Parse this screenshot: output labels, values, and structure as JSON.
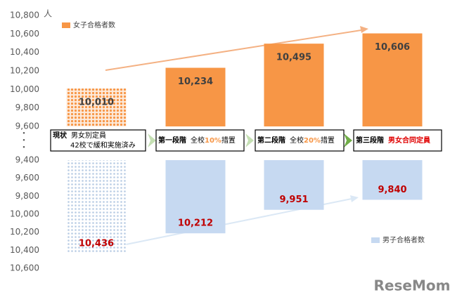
{
  "chart_data": [
    {
      "type": "bar",
      "series": [
        {
          "name": "女子合格者数",
          "color": "#f79646",
          "values": [
            10010,
            10234,
            10495,
            10606
          ],
          "value_labels": [
            "10,010",
            "10,234",
            "10,495",
            "10,606"
          ],
          "patterned": [
            true,
            false,
            false,
            false
          ]
        }
      ],
      "unit": "人",
      "inverted": false,
      "ylim": [
        9600,
        10800
      ],
      "yticks": [
        {
          "value": 9600,
          "label": "9,600"
        },
        {
          "value": 9800,
          "label": "9,800"
        },
        {
          "value": 10000,
          "label": "10,000"
        },
        {
          "value": 10200,
          "label": "10,200"
        },
        {
          "value": 10400,
          "label": "10,400"
        },
        {
          "value": 10600,
          "label": "10,600"
        },
        {
          "value": 10800,
          "label": "10,800"
        }
      ],
      "label_color": "#404040",
      "legend": "top-left"
    },
    {
      "type": "bar",
      "series": [
        {
          "name": "男子合格者数",
          "color": "#c6d9f1",
          "values": [
            10436,
            10212,
            9951,
            9840
          ],
          "value_labels": [
            "10,436",
            "10,212",
            "9,951",
            "9,840"
          ],
          "patterned": [
            true,
            false,
            false,
            false
          ]
        }
      ],
      "inverted": true,
      "ylim": [
        9400,
        10600
      ],
      "yticks": [
        {
          "value": 9400,
          "label": "9,400"
        },
        {
          "value": 9600,
          "label": "9,600"
        },
        {
          "value": 9800,
          "label": "9,800"
        },
        {
          "value": 10000,
          "label": "10,000"
        },
        {
          "value": 10200,
          "label": "10,200"
        },
        {
          "value": 10400,
          "label": "10,400"
        },
        {
          "value": 10600,
          "label": "10,600"
        }
      ],
      "label_color": "#c00000",
      "legend": "bottom-right"
    }
  ],
  "stages": [
    {
      "label": "現状",
      "note": "男女別定員",
      "note2": "42校で緩和実施済み"
    },
    {
      "label": "第一段階",
      "note": "全校",
      "highlight": "10%",
      "suffix": "措置",
      "highlight_color": "#f79646"
    },
    {
      "label": "第二段階",
      "note": "全校",
      "highlight": "20%",
      "suffix": "措置",
      "highlight_color": "#f79646"
    },
    {
      "label": "第三段階",
      "highlight": "男女合同定員",
      "highlight_color": "#e00000"
    }
  ],
  "watermark": "ReseMom"
}
